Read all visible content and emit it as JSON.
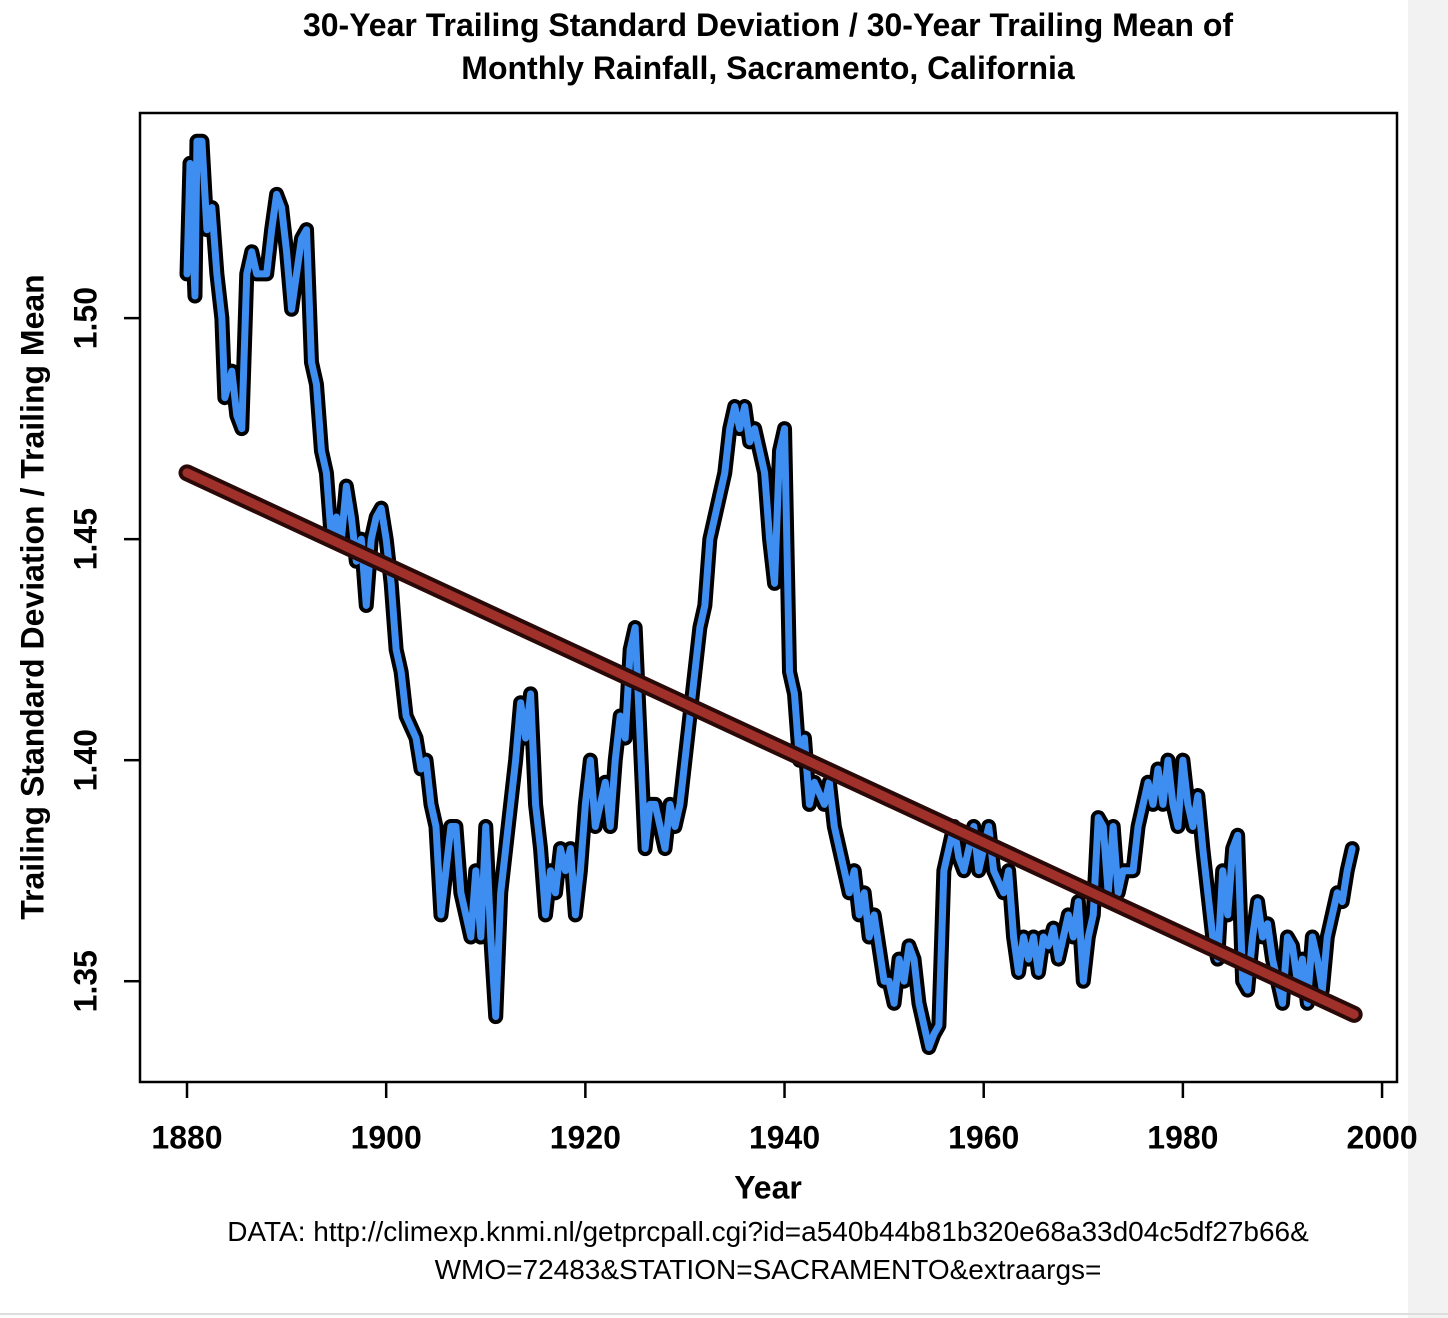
{
  "chart_data": {
    "type": "line",
    "title": "30-Year Trailing Standard Deviation / 30-Year Trailing Mean of\nMonthly Rainfall, Sacramento, California",
    "x_label": "Year",
    "y_label": "Trailing Standard Deviation / Trailing Mean",
    "source": "DATA: http://climexp.knmi.nl/getprcpall.cgi?id=a540b44b81b320e68a33d04c5df27b66&\nWMO=72483&STATION=SACRAMENTO&extraargs=",
    "xlim": [
      1875.28,
      2001.5
    ],
    "ylim": [
      1.3272,
      1.5464
    ],
    "xticks": [
      1880,
      1900,
      1920,
      1940,
      1960,
      1980,
      2000
    ],
    "yticks": [
      1.35,
      {
        "value": 1.4,
        "label": "1.40"
      },
      1.45,
      {
        "value": 1.5,
        "label": "1.50"
      }
    ],
    "series": [
      {
        "color": "#3d8ef0",
        "x": [
          1880,
          1880.3,
          1880.8,
          1881,
          1881.5,
          1882,
          1882.5,
          1883,
          1883.5,
          1883.8,
          1884.5,
          1885,
          1885.5,
          1886,
          1886.5,
          1887,
          1888,
          1888.5,
          1889,
          1889.5,
          1890,
          1890.5,
          1891,
          1891.5,
          1892,
          1892.5,
          1893,
          1893.5,
          1894,
          1894.5,
          1895,
          1895.5,
          1896,
          1896.5,
          1897,
          1897.5,
          1898,
          1898.5,
          1899,
          1899.5,
          1900,
          1900.5,
          1901,
          1901.5,
          1902,
          1903,
          1903.5,
          1904,
          1904.5,
          1905,
          1905.5,
          1906,
          1906.5,
          1907,
          1907.5,
          1908,
          1908.5,
          1909,
          1909.5,
          1910,
          1910.5,
          1911,
          1911.5,
          1912,
          1912.5,
          1913,
          1913.5,
          1914,
          1914.5,
          1915,
          1915.5,
          1916,
          1916.5,
          1917,
          1917.5,
          1918,
          1918.5,
          1919,
          1919.5,
          1920,
          1920.5,
          1921,
          1921.5,
          1922,
          1922.5,
          1923,
          1923.5,
          1924,
          1924.5,
          1925,
          1925.5,
          1926,
          1926.5,
          1927,
          1927.5,
          1928,
          1928.5,
          1929,
          1929.5,
          1930,
          1930.5,
          1931,
          1931.5,
          1932,
          1932.5,
          1933,
          1933.5,
          1934,
          1934.5,
          1935,
          1935.5,
          1936,
          1936.5,
          1937,
          1937.5,
          1938,
          1938.5,
          1939,
          1939.5,
          1940,
          1940.5,
          1941,
          1941.5,
          1942,
          1942.5,
          1943,
          1944,
          1944.5,
          1945,
          1946,
          1946.5,
          1947,
          1947.5,
          1948,
          1948.5,
          1949,
          1950,
          1950.5,
          1951,
          1951.5,
          1952,
          1952.5,
          1953,
          1953.5,
          1954,
          1954.5,
          1955,
          1955.5,
          1956,
          1956.5,
          1957,
          1957.5,
          1958,
          1958.5,
          1959,
          1959.5,
          1960,
          1960.5,
          1961,
          1962,
          1962.5,
          1963,
          1963.5,
          1964,
          1964.5,
          1965,
          1965.5,
          1966,
          1966.5,
          1967,
          1967.5,
          1968,
          1968.5,
          1969,
          1969.5,
          1970,
          1970.5,
          1971,
          1971.5,
          1972,
          1972.5,
          1973,
          1973.5,
          1974,
          1975,
          1975.5,
          1976,
          1976.5,
          1977,
          1977.5,
          1978,
          1978.5,
          1979,
          1979.5,
          1980,
          1980.5,
          1981,
          1981.5,
          1982,
          1982.5,
          1983,
          1983.5,
          1984,
          1984.5,
          1985,
          1985.5,
          1986,
          1986.5,
          1987,
          1987.5,
          1988,
          1988.5,
          1989,
          1989.5,
          1990,
          1990.5,
          1991,
          1991.5,
          1992,
          1992.5,
          1993,
          1993.5,
          1994,
          1994.5,
          1995,
          1995.5,
          1996,
          1996.5,
          1997
        ],
        "values": [
          1.51,
          1.535,
          1.505,
          1.54,
          1.54,
          1.52,
          1.525,
          1.51,
          1.5,
          1.482,
          1.488,
          1.478,
          1.475,
          1.51,
          1.515,
          1.51,
          1.51,
          1.52,
          1.528,
          1.525,
          1.515,
          1.502,
          1.51,
          1.518,
          1.52,
          1.49,
          1.485,
          1.47,
          1.465,
          1.45,
          1.455,
          1.45,
          1.462,
          1.455,
          1.445,
          1.45,
          1.435,
          1.45,
          1.455,
          1.457,
          1.45,
          1.44,
          1.425,
          1.42,
          1.41,
          1.405,
          1.398,
          1.4,
          1.39,
          1.385,
          1.365,
          1.375,
          1.385,
          1.385,
          1.37,
          1.365,
          1.36,
          1.375,
          1.36,
          1.385,
          1.36,
          1.342,
          1.37,
          1.38,
          1.39,
          1.4,
          1.413,
          1.405,
          1.415,
          1.39,
          1.38,
          1.365,
          1.375,
          1.37,
          1.38,
          1.375,
          1.38,
          1.365,
          1.375,
          1.39,
          1.4,
          1.385,
          1.39,
          1.395,
          1.385,
          1.4,
          1.41,
          1.405,
          1.425,
          1.43,
          1.405,
          1.38,
          1.39,
          1.39,
          1.385,
          1.38,
          1.39,
          1.385,
          1.39,
          1.4,
          1.41,
          1.42,
          1.43,
          1.435,
          1.45,
          1.455,
          1.46,
          1.465,
          1.475,
          1.48,
          1.475,
          1.48,
          1.472,
          1.475,
          1.47,
          1.465,
          1.45,
          1.44,
          1.47,
          1.475,
          1.42,
          1.415,
          1.4,
          1.405,
          1.39,
          1.395,
          1.39,
          1.395,
          1.385,
          1.375,
          1.37,
          1.375,
          1.365,
          1.37,
          1.36,
          1.365,
          1.35,
          1.35,
          1.345,
          1.355,
          1.35,
          1.358,
          1.355,
          1.345,
          1.34,
          1.335,
          1.338,
          1.34,
          1.375,
          1.38,
          1.385,
          1.378,
          1.375,
          1.38,
          1.385,
          1.375,
          1.38,
          1.385,
          1.375,
          1.37,
          1.375,
          1.36,
          1.352,
          1.36,
          1.355,
          1.36,
          1.352,
          1.36,
          1.358,
          1.362,
          1.355,
          1.36,
          1.365,
          1.36,
          1.368,
          1.35,
          1.36,
          1.365,
          1.387,
          1.385,
          1.37,
          1.385,
          1.37,
          1.375,
          1.375,
          1.385,
          1.39,
          1.395,
          1.39,
          1.398,
          1.39,
          1.4,
          1.39,
          1.385,
          1.4,
          1.39,
          1.385,
          1.392,
          1.38,
          1.37,
          1.36,
          1.355,
          1.375,
          1.365,
          1.38,
          1.383,
          1.35,
          1.348,
          1.36,
          1.368,
          1.36,
          1.363,
          1.355,
          1.35,
          1.345,
          1.36,
          1.358,
          1.35,
          1.355,
          1.345,
          1.36,
          1.355,
          1.348,
          1.36,
          1.365,
          1.37,
          1.368,
          1.375,
          1.38
        ]
      },
      {
        "color": "#a0302a",
        "x": [
          1880,
          1997.2
        ],
        "values": [
          1.465,
          1.3425
        ]
      }
    ]
  }
}
